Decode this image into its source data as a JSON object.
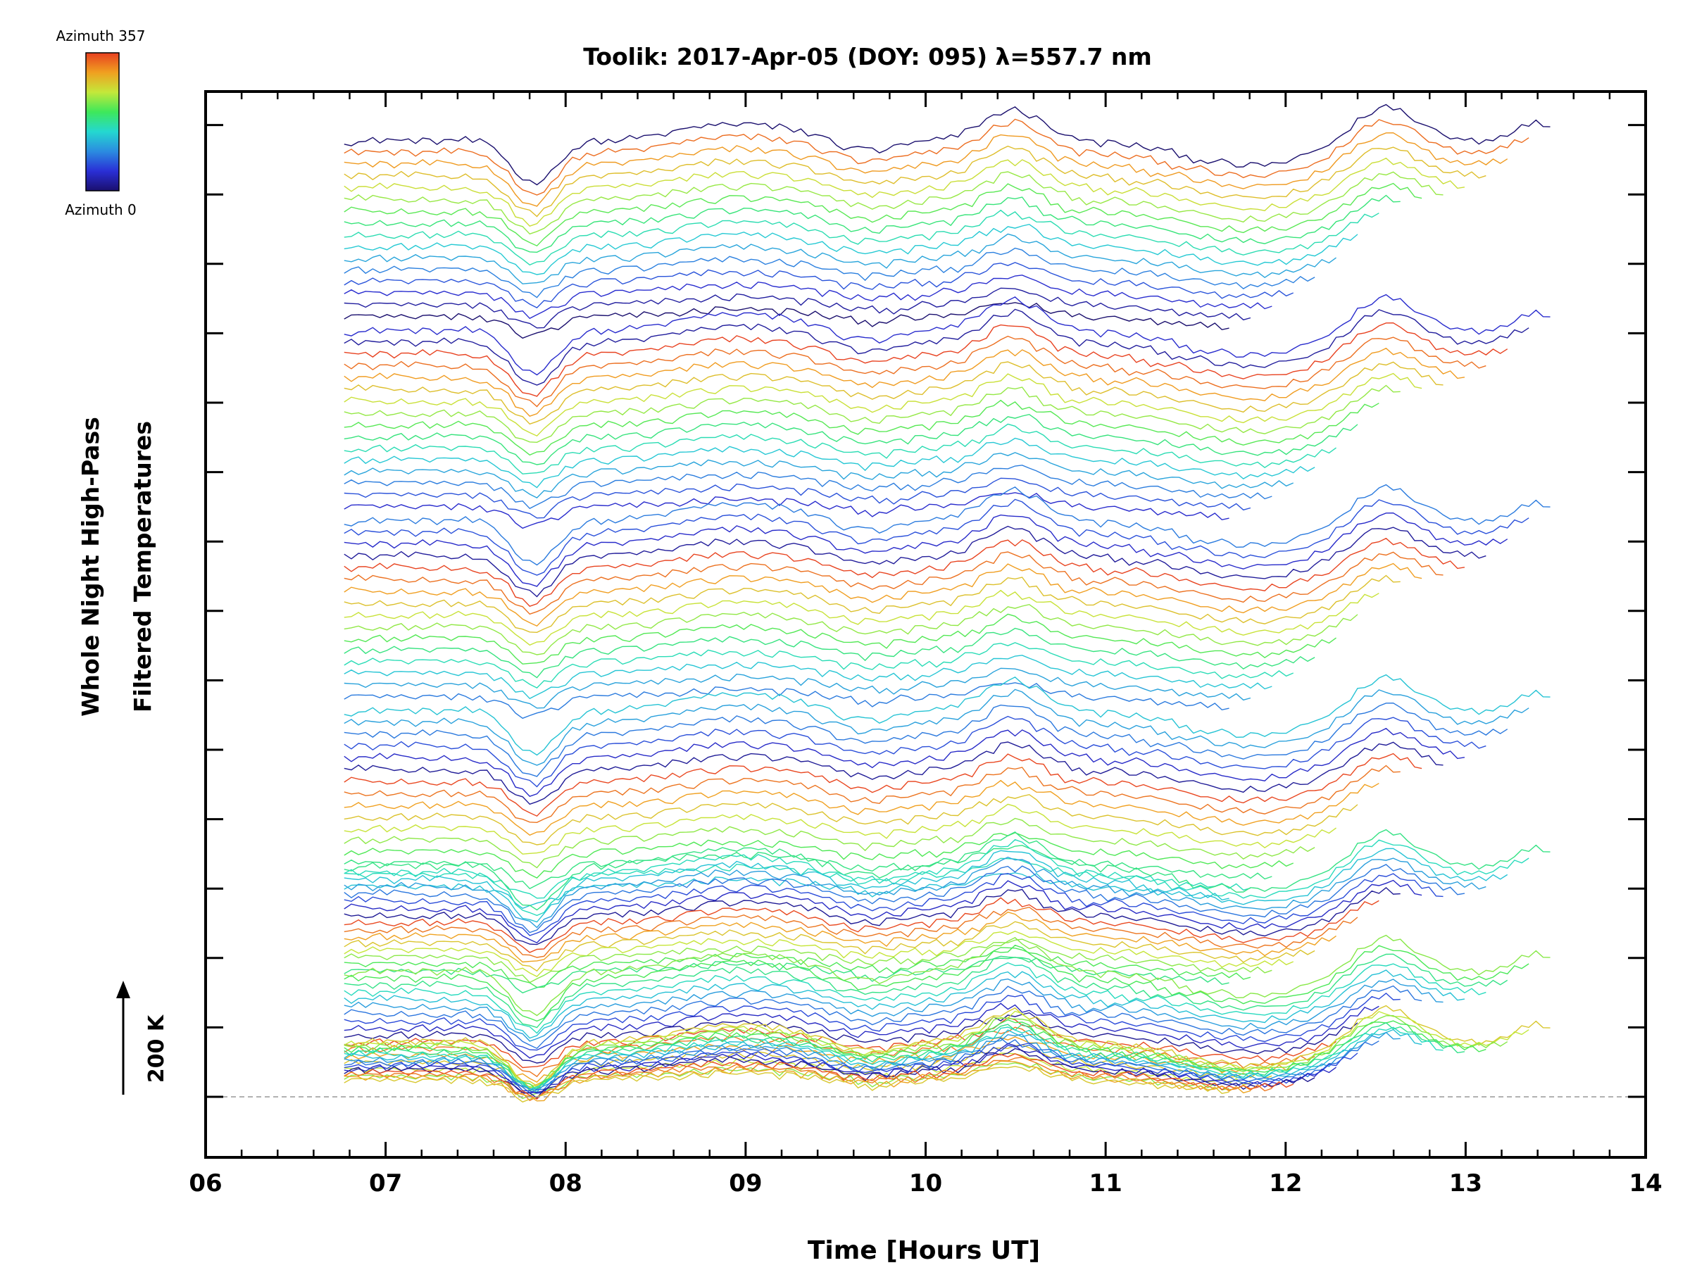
{
  "chart_data": {
    "type": "line",
    "title": "Toolik: 2017-Apr-05 (DOY: 095) λ=557.7 nm",
    "xlabel": "Time [Hours UT]",
    "ylabel_line1": "Whole Night High-Pass",
    "ylabel_line2": "Filtered Temperatures",
    "xlim": [
      6,
      14
    ],
    "x_ticks": [
      "06",
      "07",
      "08",
      "09",
      "10",
      "11",
      "12",
      "13",
      "14"
    ],
    "x_tick_values": [
      6,
      7,
      8,
      9,
      10,
      11,
      12,
      13,
      14
    ],
    "y_tick_count": 15,
    "scale_bar_label": "200 K",
    "colorbar": {
      "top_label": "Azimuth 357",
      "bottom_label": "Azimuth 0",
      "min": 0,
      "max": 357,
      "colors": [
        "#1a0f6e",
        "#2a2fd6",
        "#2b8ce0",
        "#24d8d0",
        "#3ee85a",
        "#c4e83a",
        "#f0a020",
        "#e84020"
      ]
    },
    "time_start": 6.77,
    "time_end": 13.47,
    "groups": 7,
    "curves_per_group": 16,
    "group_spacing_kelvin": 400,
    "notes": "Stacked high-pass filtered temperature traces, one per azimuth, coloured by azimuth; each group of traces offset vertically."
  }
}
